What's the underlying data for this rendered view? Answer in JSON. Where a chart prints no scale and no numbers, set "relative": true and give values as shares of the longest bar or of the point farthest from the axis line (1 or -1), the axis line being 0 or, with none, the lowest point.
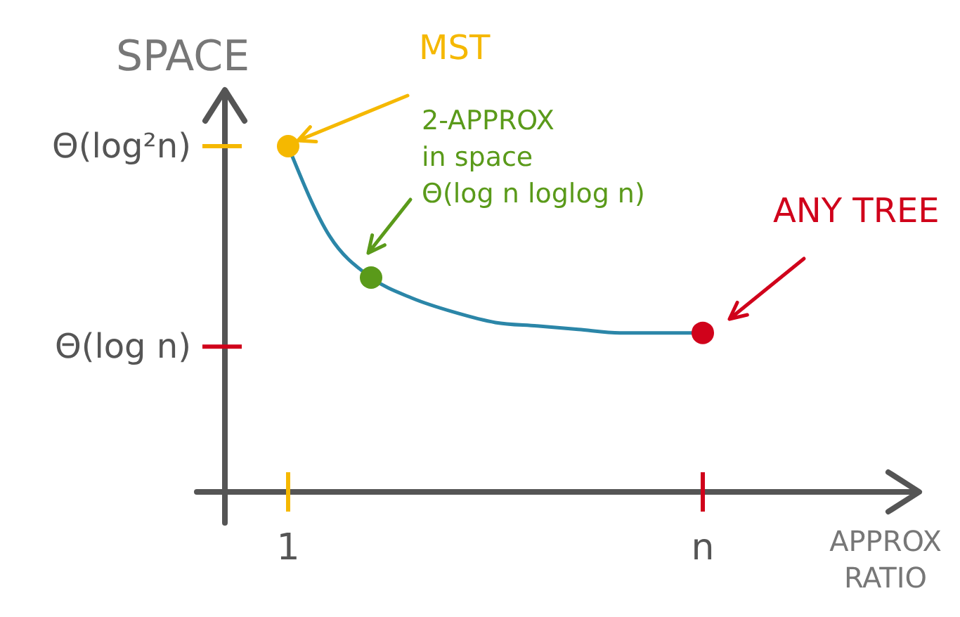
{
  "chart_data": {
    "type": "line",
    "xlabel": "APPROX RATIO",
    "ylabel": "SPACE",
    "relative": true,
    "categories": [
      "1",
      null,
      null,
      null,
      null,
      null,
      null,
      null,
      null,
      null,
      "n"
    ],
    "series": [
      {
        "color": "#2b86a8",
        "marker": "none",
        "values": [
          1.0,
          0.74,
          0.62,
          0.56,
          0.52,
          0.49,
          0.48,
          0.47,
          0.46,
          0.46,
          0.46
        ]
      },
      {
        "type": "scatter",
        "marker": "circle",
        "colors": [
          "#f5b800",
          null,
          "#5a9a1a",
          null,
          null,
          null,
          null,
          null,
          null,
          null,
          "#d0021b"
        ],
        "values": [
          1.0,
          null,
          0.62,
          null,
          null,
          null,
          null,
          null,
          null,
          null,
          0.46
        ]
      }
    ],
    "ref_lines": [
      {
        "axis": "y",
        "value": 0.42,
        "label": "Θ(log n)",
        "color": "#d0021b"
      },
      {
        "axis": "y",
        "value": 1.0,
        "label": "Θ(log²n)",
        "color": "#f5b800"
      }
    ],
    "annotations": [
      "MST",
      "2-APPROX\nin space\nΘ(log n loglog n)",
      "ANY TREE"
    ],
    "grid": false,
    "legend": false
  }
}
